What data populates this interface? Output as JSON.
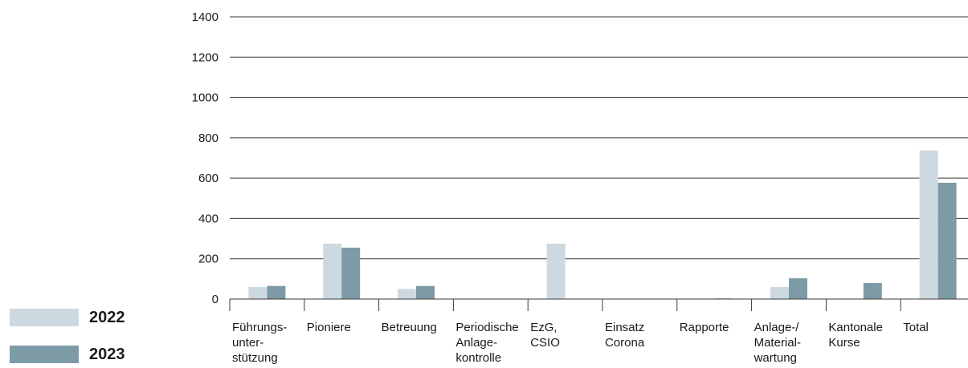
{
  "chart_data": {
    "type": "bar",
    "categories": [
      [
        "Führungs-",
        "unter-",
        "stützung"
      ],
      [
        "Pioniere"
      ],
      [
        "Betreuung"
      ],
      [
        "Periodische",
        "Anlage-",
        "kontrolle"
      ],
      [
        "EzG,",
        "CSIO"
      ],
      [
        "Einsatz",
        "Corona"
      ],
      [
        "Rapporte"
      ],
      [
        "Anlage-/",
        "Material-",
        "wartung"
      ],
      [
        "Kantonale",
        "Kurse"
      ],
      [
        "Total"
      ]
    ],
    "series": [
      {
        "name": "2022",
        "color": "#cdd9e0",
        "values": [
          60,
          275,
          50,
          0,
          275,
          0,
          2,
          60,
          0,
          737
        ]
      },
      {
        "name": "2023",
        "color": "#7d9ba6",
        "values": [
          65,
          255,
          65,
          0,
          0,
          0,
          3,
          103,
          80,
          577
        ]
      }
    ],
    "yticks": [
      0,
      200,
      400,
      600,
      800,
      1000,
      1200,
      1400
    ],
    "ylim": [
      0,
      1400
    ],
    "grid": true,
    "legend_position": "bottom-left"
  }
}
